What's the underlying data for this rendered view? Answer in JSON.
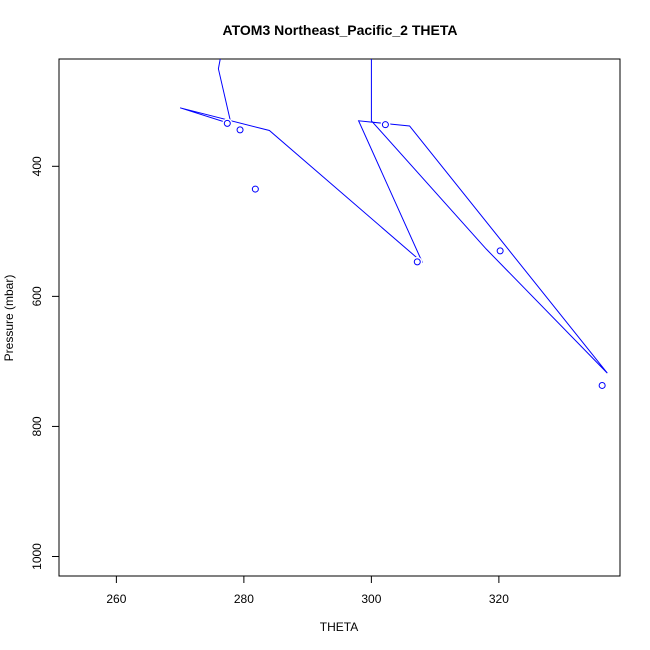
{
  "chart_data": {
    "type": "line",
    "title": "ATOM3 Northeast_Pacific_2 THETA",
    "xlabel": "THETA",
    "ylabel": "Pressure (mbar)",
    "xlim": [
      251,
      339
    ],
    "ylim": [
      1030,
      235
    ],
    "y_reversed": true,
    "x_ticks": [
      260,
      280,
      300,
      320
    ],
    "y_ticks": [
      400,
      600,
      800,
      1000
    ],
    "grid": false,
    "legend": "none",
    "series_color": "#0000ff",
    "series": [
      {
        "x": [
          280,
          276,
          278,
          270,
          284,
          308,
          298,
          306,
          337,
          318,
          300,
          300
        ],
        "y": [
          40,
          250,
          335,
          310,
          345,
          548,
          330,
          338,
          718,
          527,
          330,
          200
        ]
      }
    ],
    "markers": {
      "x": [
        277.4,
        279.4,
        281.8,
        307.2,
        302.2,
        320.2,
        336.2
      ],
      "y": [
        334,
        344,
        435,
        547,
        336,
        530,
        737
      ]
    }
  }
}
